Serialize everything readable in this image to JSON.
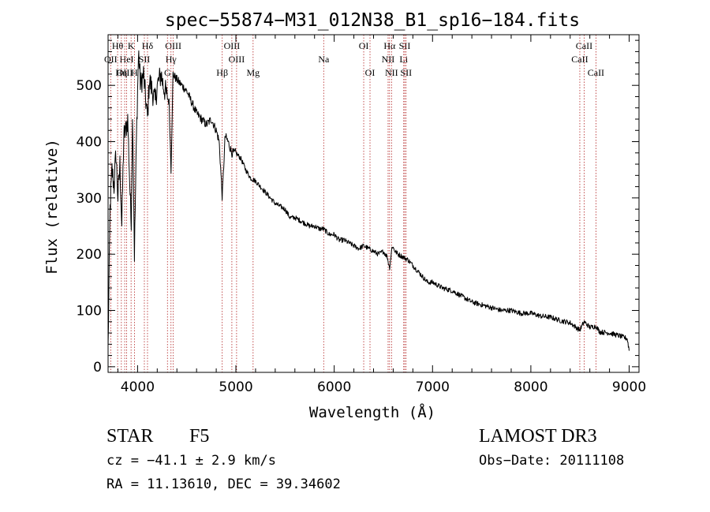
{
  "chart_data": {
    "type": "line",
    "title": "spec−55874−M31_012N38_B1_sp16−184.fits",
    "xlabel": "Wavelength (Å)",
    "ylabel": "Flux (relative)",
    "xlim": [
      3700,
      9100
    ],
    "ylim": [
      -10,
      590
    ],
    "xticks": [
      4000,
      5000,
      6000,
      7000,
      8000,
      9000
    ],
    "yticks": [
      0,
      100,
      200,
      300,
      400,
      500
    ],
    "grid": false,
    "spectrum_anchors": {
      "x": [
        3700,
        3720,
        3740,
        3760,
        3780,
        3800,
        3820,
        3840,
        3860,
        3880,
        3900,
        3920,
        3935,
        3950,
        3968,
        3990,
        4010,
        4030,
        4060,
        4080,
        4101,
        4120,
        4150,
        4180,
        4200,
        4240,
        4260,
        4300,
        4320,
        4340,
        4360,
        4400,
        4450,
        4500,
        4550,
        4600,
        4650,
        4700,
        4750,
        4800,
        4830,
        4861,
        4890,
        4920,
        4960,
        5000,
        5050,
        5100,
        5150,
        5200,
        5250,
        5300,
        5350,
        5400,
        5450,
        5500,
        5550,
        5600,
        5650,
        5700,
        5750,
        5800,
        5850,
        5890,
        5950,
        6000,
        6050,
        6100,
        6150,
        6200,
        6250,
        6300,
        6350,
        6400,
        6450,
        6500,
        6540,
        6563,
        6590,
        6620,
        6650,
        6700,
        6750,
        6800,
        6850,
        6900,
        6950,
        7000,
        7100,
        7200,
        7300,
        7400,
        7500,
        7600,
        7700,
        7800,
        7900,
        8000,
        8100,
        8200,
        8300,
        8400,
        8498,
        8542,
        8600,
        8662,
        8700,
        8800,
        8900,
        8980,
        9000
      ],
      "y": [
        30,
        280,
        350,
        320,
        380,
        300,
        360,
        250,
        410,
        420,
        440,
        330,
        250,
        460,
        200,
        420,
        560,
        500,
        520,
        480,
        440,
        510,
        490,
        470,
        500,
        520,
        500,
        480,
        470,
        350,
        520,
        510,
        500,
        490,
        470,
        450,
        440,
        430,
        440,
        420,
        400,
        300,
        410,
        400,
        380,
        380,
        370,
        350,
        335,
        330,
        320,
        310,
        300,
        290,
        285,
        280,
        265,
        265,
        260,
        255,
        250,
        250,
        245,
        245,
        235,
        235,
        225,
        225,
        220,
        215,
        210,
        215,
        210,
        205,
        200,
        205,
        195,
        175,
        215,
        205,
        200,
        195,
        190,
        180,
        170,
        160,
        150,
        150,
        140,
        135,
        125,
        115,
        110,
        105,
        100,
        100,
        95,
        95,
        90,
        88,
        82,
        78,
        65,
        80,
        70,
        72,
        62,
        60,
        55,
        50,
        30
      ]
    },
    "line_markers": [
      {
        "label": "Hθ",
        "x": 3797,
        "row": 0
      },
      {
        "label": "K",
        "x": 3934,
        "row": 0
      },
      {
        "label": "Hδ",
        "x": 4101,
        "row": 0
      },
      {
        "label": "OIII",
        "x": 4363,
        "row": 0
      },
      {
        "label": "OIII",
        "x": 4959,
        "row": 0
      },
      {
        "label": "OI",
        "x": 6300,
        "row": 0
      },
      {
        "label": "Hα",
        "x": 6563,
        "row": 0
      },
      {
        "label": "SII",
        "x": 6717,
        "row": 0
      },
      {
        "label": "CaII",
        "x": 8542,
        "row": 0
      },
      {
        "label": "OII",
        "x": 3727,
        "row": 1
      },
      {
        "label": "HeI",
        "x": 3889,
        "row": 1
      },
      {
        "label": "SII",
        "x": 4069,
        "row": 1
      },
      {
        "label": "Hγ",
        "x": 4340,
        "row": 1
      },
      {
        "label": "OIII",
        "x": 5007,
        "row": 1
      },
      {
        "label": "Na",
        "x": 5893,
        "row": 1
      },
      {
        "label": "NII",
        "x": 6548,
        "row": 1
      },
      {
        "label": "Li",
        "x": 6707,
        "row": 1
      },
      {
        "label": "CaII",
        "x": 8498,
        "row": 1
      },
      {
        "label": "OIII",
        "x": 3869,
        "row": 2
      },
      {
        "label": "Hη",
        "x": 3835,
        "row": 2
      },
      {
        "label": "H",
        "x": 3968,
        "row": 2
      },
      {
        "label": "G",
        "x": 4304,
        "row": 2
      },
      {
        "label": "Hβ",
        "x": 4861,
        "row": 2
      },
      {
        "label": "Mg",
        "x": 5175,
        "row": 2
      },
      {
        "label": "OI",
        "x": 6364,
        "row": 2
      },
      {
        "label": "NII",
        "x": 6583,
        "row": 2
      },
      {
        "label": "SII",
        "x": 6731,
        "row": 2
      },
      {
        "label": "CaII",
        "x": 8662,
        "row": 2
      }
    ]
  },
  "info": {
    "obj_class": "STAR",
    "subclass": "F5",
    "cz": "cz = −41.1 ± 2.9 km/s",
    "radec": "RA =  11.13610, DEC =  39.34602",
    "survey": "LAMOST DR3",
    "obs_date": "Obs−Date: 20111108"
  }
}
